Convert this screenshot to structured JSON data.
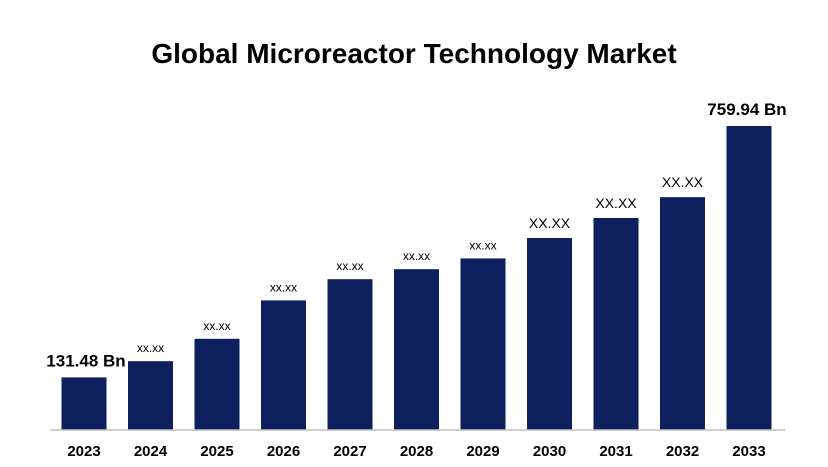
{
  "chart_data": {
    "type": "bar",
    "title": "Global Microreactor Technology Market",
    "xlabel": "",
    "ylabel": "",
    "categories": [
      "2023",
      "2024",
      "2025",
      "2026",
      "2027",
      "2028",
      "2029",
      "2030",
      "2031",
      "2032",
      "2033"
    ],
    "values": [
      131.48,
      172,
      228,
      324,
      377,
      402,
      429,
      480,
      530,
      582,
      759.94
    ],
    "data_labels": [
      "131.48 Bn",
      "xx.xx",
      "xx.xx",
      "xx.xx",
      "xx.xx",
      "xx.xx",
      "xx.xx",
      "XX.XX",
      "XX.XX",
      "XX.XX",
      "759.94 Bn"
    ],
    "ylim": [
      0,
      800
    ],
    "grid": false,
    "legend": "none",
    "bar_color": "#0d1f5c",
    "axis_color": "#bfbfbf"
  }
}
